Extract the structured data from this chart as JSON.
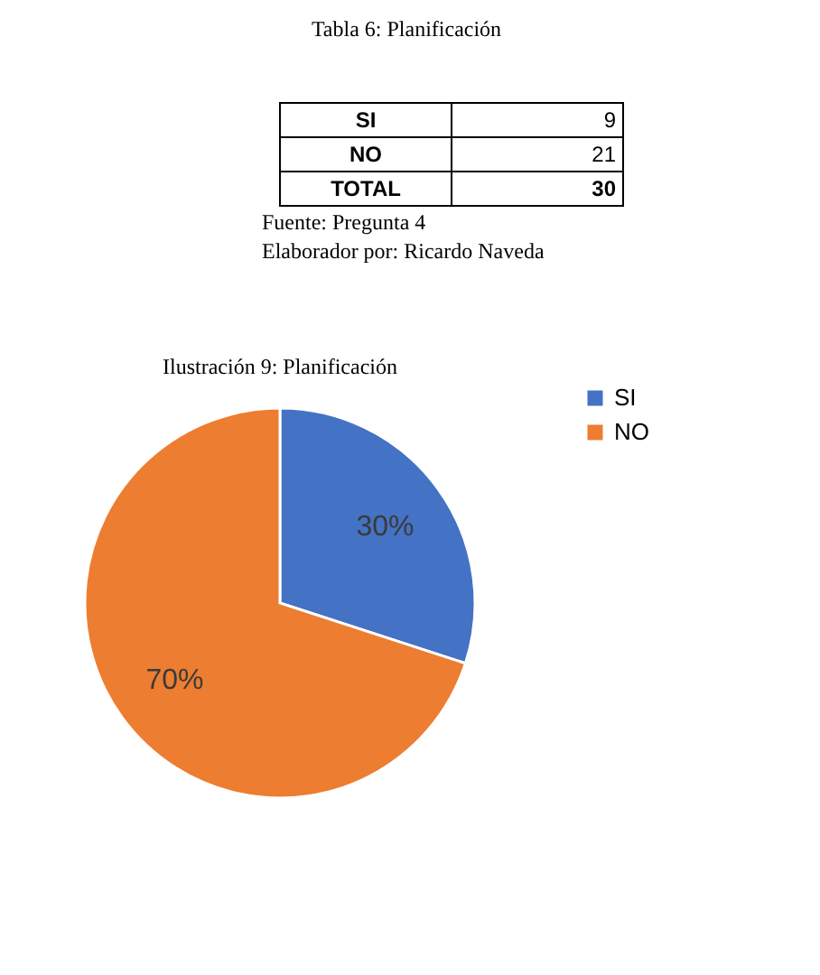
{
  "chart_data": [
    {
      "type": "other",
      "title": "Tabla 6: Planificación",
      "annotations": [
        "SI",
        "9",
        "NO",
        "21",
        "TOTAL",
        "30",
        "Fuente: Pregunta 4",
        "Elaborador por: Ricardo Naveda"
      ]
    },
    {
      "type": "pie",
      "title": "Ilustración 9: Planificación",
      "categories": [
        "SI",
        "NO"
      ],
      "values": [
        30,
        70
      ],
      "colors": [
        "#4472c4",
        "#ed7d31"
      ],
      "value_labels": [
        "30%",
        "70%"
      ],
      "legend": "right"
    }
  ]
}
